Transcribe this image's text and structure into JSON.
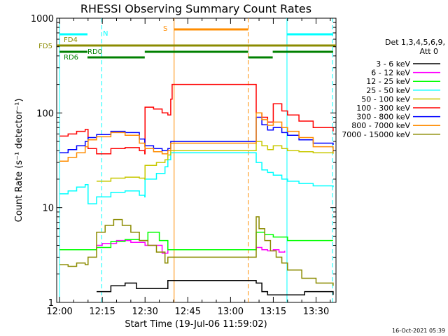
{
  "chart_data": {
    "type": "line",
    "title": "RHESSI Observing Summary Count Rates",
    "xlabel": "Start Time (19-Jul-06 11:59:02)",
    "ylabel": "Count Rate (s⁻¹ detector⁻¹)",
    "y_scale": "log",
    "ylim": [
      1,
      1000
    ],
    "xlim_minutes": [
      -1,
      97
    ],
    "x_ticks": [
      {
        "label": "12:00",
        "minute": 0
      },
      {
        "label": "12:15",
        "minute": 15
      },
      {
        "label": "12:30",
        "minute": 30
      },
      {
        "label": "12:45",
        "minute": 45
      },
      {
        "label": "13:00",
        "minute": 60
      },
      {
        "label": "13:15",
        "minute": 75
      },
      {
        "label": "13:30",
        "minute": 90
      }
    ],
    "y_ticks": [
      {
        "label": "1",
        "value": 1
      },
      {
        "label": "10",
        "value": 10
      },
      {
        "label": "100",
        "value": 100
      },
      {
        "label": "1000",
        "value": 1000
      }
    ],
    "legend": {
      "header_line1": "Det 1,3,4,5,6,9,",
      "header_line2": "Att 0",
      "placement": "right"
    },
    "series": [
      {
        "name": "3 - 6 keV",
        "color": "#000000",
        "x": [
          13,
          18,
          23,
          27,
          37,
          38,
          69,
          71,
          73,
          86,
          96
        ],
        "y": [
          1.3,
          1.5,
          1.6,
          1.4,
          1.4,
          1.7,
          1.6,
          1.3,
          1.2,
          1.3,
          1.2
        ]
      },
      {
        "name": "6 - 12 keV",
        "color": "#ff00ff",
        "x": [
          13,
          15,
          20,
          25,
          30,
          36,
          38,
          69,
          71,
          73,
          75,
          77,
          79
        ],
        "y": [
          4.0,
          4.2,
          4.5,
          4.3,
          4.0,
          3.3,
          3.6,
          3.8,
          3.6,
          3.5,
          3.6,
          3.4,
          3.5
        ]
      },
      {
        "name": "12 - 25 keV",
        "color": "#00ff00",
        "x": [
          0,
          5,
          9,
          13,
          18,
          23,
          28,
          31,
          35,
          38,
          69,
          72,
          75,
          80,
          85,
          90,
          96
        ],
        "y": [
          3.6,
          3.6,
          3.6,
          3.8,
          4.4,
          4.6,
          4.5,
          5.5,
          4.5,
          3.6,
          5.5,
          5.2,
          4.9,
          4.5,
          4.5,
          4.5,
          4.5
        ]
      },
      {
        "name": "25 - 50 keV",
        "color": "#00ffff",
        "x": [
          0,
          3,
          6,
          9,
          10,
          13,
          18,
          23,
          28,
          29.9,
          30,
          34,
          37,
          38,
          39,
          69,
          71,
          73,
          75,
          78,
          80,
          84,
          89,
          96
        ],
        "y": [
          14,
          15,
          16.5,
          17.5,
          11,
          13,
          14.5,
          15,
          13.5,
          13,
          20,
          23,
          27,
          32,
          38,
          30,
          25,
          23.5,
          22,
          20,
          19,
          18,
          17,
          16.5
        ]
      },
      {
        "name": "50 - 100 keV",
        "color": "#c8c800",
        "x": [
          13,
          18,
          23,
          28,
          29.9,
          30,
          34,
          37,
          38,
          39,
          69,
          71,
          73,
          75,
          78,
          80,
          84,
          89,
          96
        ],
        "y": [
          19,
          20.5,
          21,
          20.5,
          20,
          28,
          30,
          32,
          36,
          40,
          50,
          45,
          41,
          45,
          42,
          40,
          39,
          38,
          37
        ]
      },
      {
        "name": "100 - 300 keV",
        "color": "#ff0000",
        "x": [
          0,
          3,
          6,
          9,
          10,
          13,
          18,
          23,
          28,
          29.9,
          30,
          33,
          36,
          38,
          39,
          39.5,
          69,
          71,
          73,
          75,
          78,
          80,
          84,
          89,
          96
        ],
        "y": [
          57,
          60,
          64,
          67,
          42,
          37,
          42,
          43,
          40,
          37,
          115,
          110,
          100,
          95,
          140,
          200,
          100,
          90,
          80,
          125,
          105,
          95,
          82,
          70,
          64
        ]
      },
      {
        "name": "300 - 800 keV",
        "color": "#0000ff",
        "x": [
          0,
          3,
          6,
          9,
          10,
          13,
          18,
          23,
          28,
          29.9,
          30,
          33,
          36,
          38,
          39,
          69,
          71,
          73,
          75,
          78,
          80,
          84,
          89,
          96
        ],
        "y": [
          38,
          41,
          45,
          50,
          55,
          59,
          64,
          62,
          53,
          48,
          45,
          42,
          40,
          42,
          50,
          90,
          75,
          66,
          70,
          62,
          58,
          52,
          48,
          46
        ]
      },
      {
        "name": "800 - 7000 keV",
        "color": "#ff8c00",
        "x": [
          0,
          3,
          6,
          9,
          10,
          13,
          18,
          23,
          28,
          29.9,
          30,
          33,
          36,
          38,
          39,
          69,
          71,
          73,
          75,
          78,
          80,
          84,
          89,
          96
        ],
        "y": [
          31,
          34,
          38,
          44,
          52,
          56,
          62,
          58,
          48,
          44,
          42,
          39,
          37,
          40,
          48,
          100,
          85,
          74,
          80,
          70,
          64,
          55,
          44,
          38
        ]
      },
      {
        "name": "7000 - 15000 keV",
        "color": "#8b8b00",
        "x": [
          0,
          3,
          6,
          9,
          10,
          13,
          16,
          19,
          22,
          25,
          28,
          31,
          34,
          37,
          38,
          69,
          70,
          72,
          74,
          76,
          78,
          80,
          85,
          90,
          96
        ],
        "y": [
          2.5,
          2.4,
          2.6,
          2.5,
          3.0,
          5.5,
          6.5,
          7.5,
          6.5,
          5.5,
          4.5,
          4.0,
          3.4,
          2.6,
          3.0,
          8.0,
          6.0,
          4.5,
          3.5,
          3.0,
          2.6,
          2.2,
          1.8,
          1.6,
          1.5
        ]
      }
    ],
    "flags": [
      {
        "label": "N",
        "color": "#00ffff",
        "level": 1,
        "segments": [
          [
            0,
            9.8
          ],
          [
            79.8,
            96
          ]
        ]
      },
      {
        "label": "S",
        "color": "#ff8c00",
        "level": 0,
        "segments": [
          [
            40.2,
            66.2
          ]
        ]
      },
      {
        "label": "FD4",
        "color": "#8b8b00",
        "level": 2,
        "segments": [
          [
            -1,
            97
          ]
        ]
      },
      {
        "label": "FD5",
        "color": "#8b8b00",
        "level": 3,
        "segments": [
          [
            -1,
            97
          ]
        ]
      },
      {
        "label": "RD0",
        "color": "#008000",
        "level": 4,
        "segments": [
          [
            0,
            9.8
          ],
          [
            29.9,
            66.2
          ],
          [
            74.8,
            96
          ]
        ]
      },
      {
        "label": "RD6",
        "color": "#008000",
        "level": 5,
        "segments": [
          [
            9.8,
            29.9
          ],
          [
            66.2,
            74.8
          ]
        ]
      }
    ],
    "event_lines": [
      {
        "name": "night-boundary",
        "color": "#00ffff",
        "style": "solid",
        "minute": 0
      },
      {
        "name": "night-boundary",
        "color": "#00ffff",
        "style": "dashed",
        "minute": 14.8
      },
      {
        "name": "night-boundary",
        "color": "#00ffff",
        "style": "solid",
        "minute": 79.8
      },
      {
        "name": "night-boundary",
        "color": "#00ffff",
        "style": "dashed",
        "minute": 95.8
      },
      {
        "name": "saa-boundary",
        "color": "#ff8c00",
        "style": "solid",
        "minute": 40.2
      },
      {
        "name": "saa-boundary",
        "color": "#ff8c00",
        "style": "dashed",
        "minute": 66.2
      }
    ]
  },
  "footer": {
    "timestamp": "16-Oct-2021 05:39"
  }
}
